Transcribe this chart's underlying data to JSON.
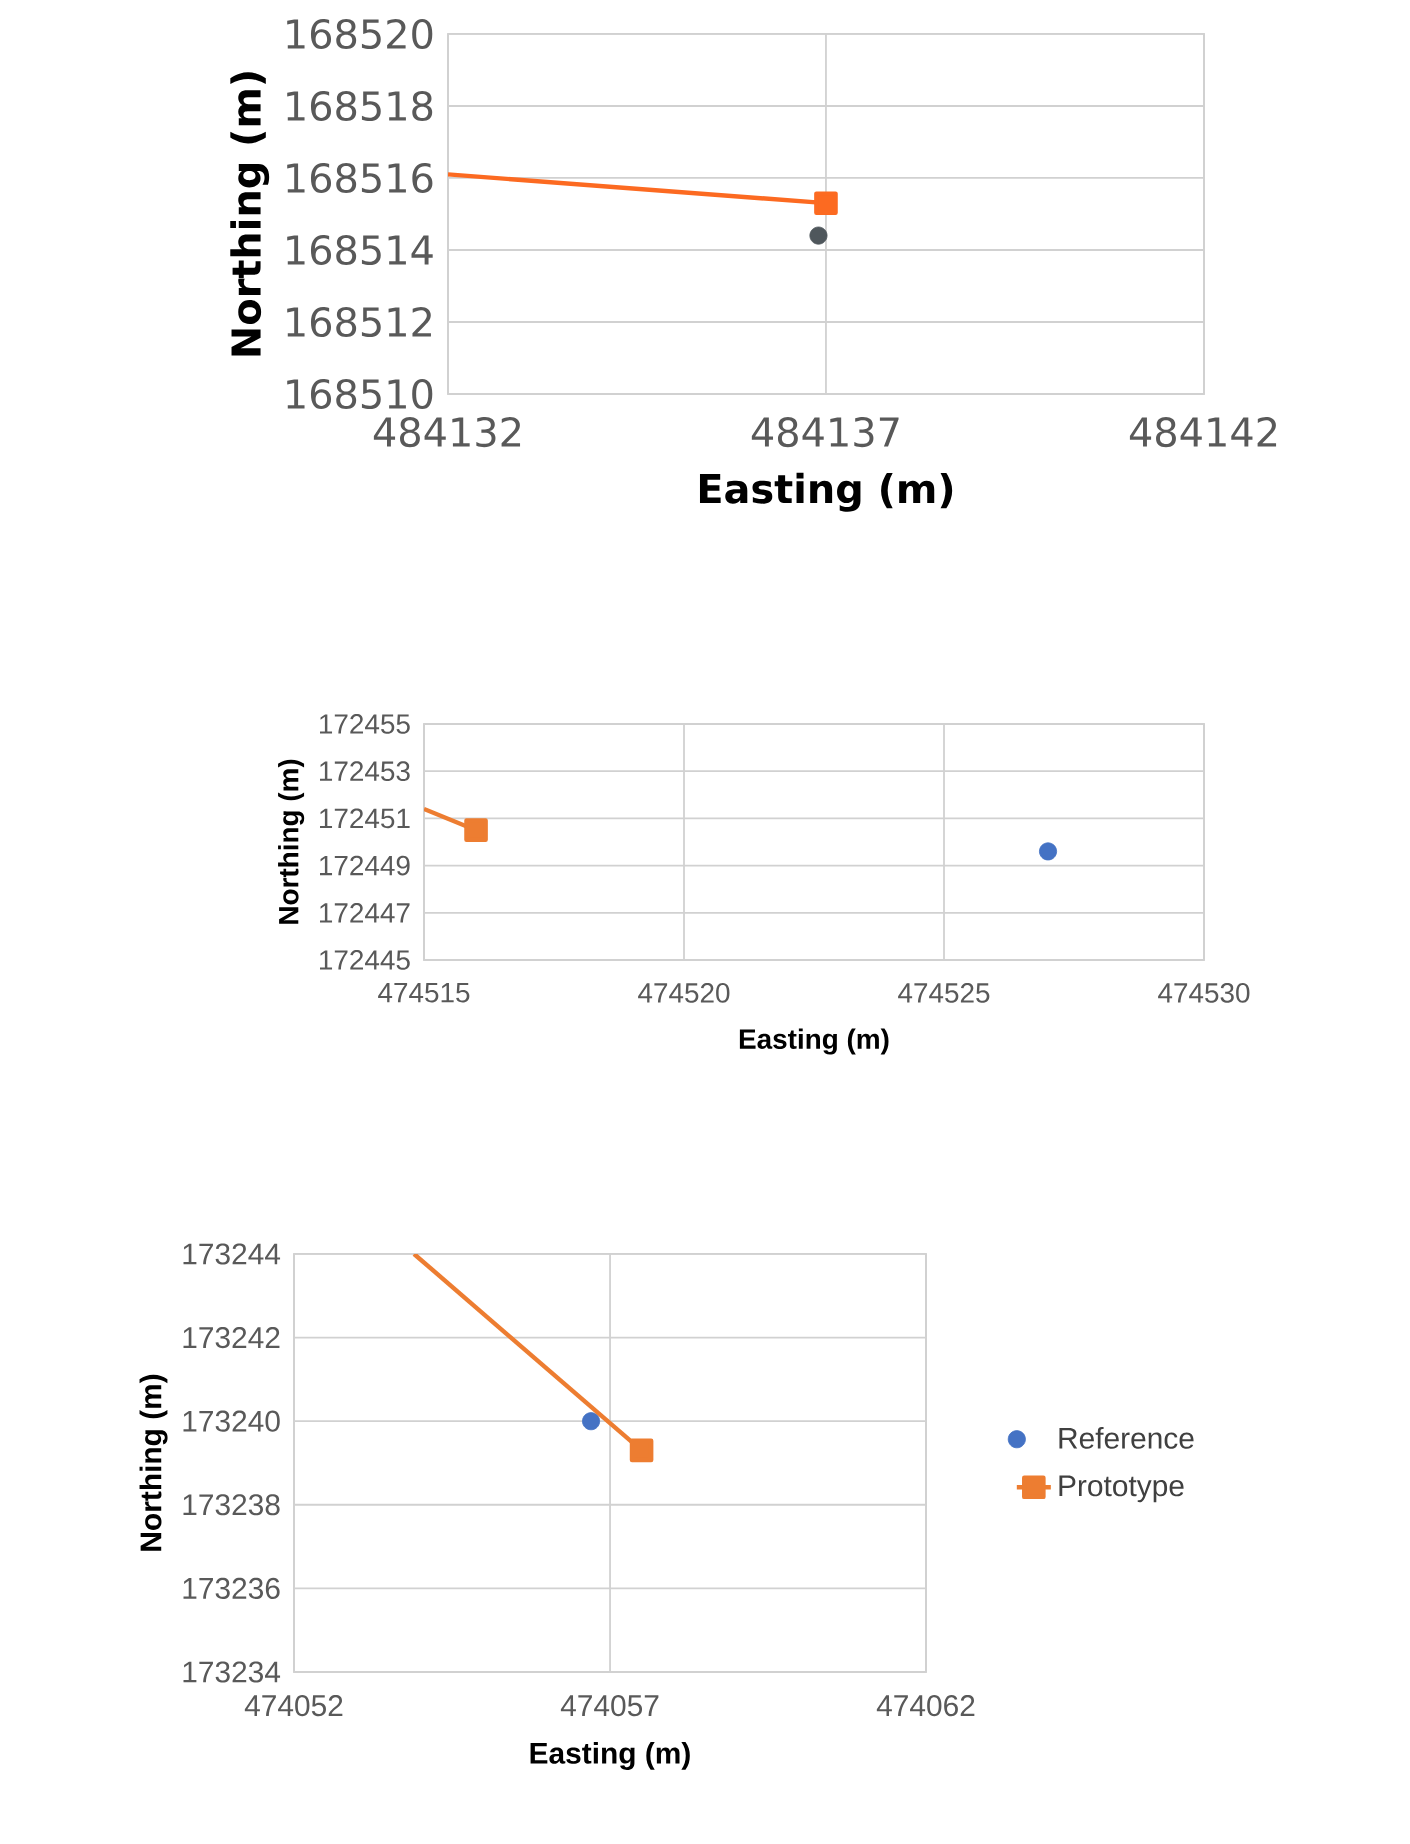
{
  "chart_data": [
    {
      "type": "scatter",
      "xlabel": "Easting (m)",
      "ylabel": "Northing (m)",
      "xlim": [
        484132,
        484142
      ],
      "xticks": [
        484132,
        484137,
        484142
      ],
      "ylim": [
        168510,
        168520
      ],
      "yticks": [
        168510,
        168512,
        168514,
        168516,
        168518,
        168520
      ],
      "grid": true,
      "legend": false,
      "series": [
        {
          "color": "#4f575c",
          "marker": "circle",
          "x": [
            484136.9
          ],
          "values": [
            168514.4
          ]
        },
        {
          "type": "line",
          "color": "#fc6a21",
          "marker": "square",
          "x": [
            484132,
            484137.0
          ],
          "values": [
            168516.1,
            168515.3
          ]
        }
      ]
    },
    {
      "type": "scatter",
      "xlabel": "Easting (m)",
      "ylabel": "Northing (m)",
      "xlim": [
        474515,
        474530
      ],
      "xticks": [
        474515,
        474520,
        474525,
        474530
      ],
      "ylim": [
        172445,
        172455
      ],
      "yticks": [
        172445,
        172447,
        172449,
        172451,
        172453,
        172455
      ],
      "grid": true,
      "legend": false,
      "series": [
        {
          "color": "#4472c4",
          "marker": "circle",
          "x": [
            474527.0
          ],
          "values": [
            172449.6
          ]
        },
        {
          "type": "line",
          "color": "#ed7d31",
          "marker": "square",
          "x": [
            474515,
            474516.0
          ],
          "values": [
            172451.4,
            172450.5
          ]
        }
      ]
    },
    {
      "type": "scatter",
      "xlabel": "Easting (m)",
      "ylabel": "Northing (m)",
      "xlim": [
        474052,
        474062
      ],
      "xticks": [
        474052,
        474057,
        474062
      ],
      "ylim": [
        173234,
        173244
      ],
      "yticks": [
        173234,
        173236,
        173238,
        173240,
        173242,
        173244
      ],
      "grid": true,
      "legend": "right",
      "series": [
        {
          "name": "Reference",
          "color": "#4472c4",
          "marker": "circle",
          "x": [
            474056.7
          ],
          "values": [
            173240.0
          ]
        },
        {
          "name": "Prototype",
          "type": "line",
          "color": "#ed7d31",
          "marker": "square",
          "x": [
            474053.9,
            474057.5
          ],
          "values": [
            173244,
            173239.3
          ]
        }
      ]
    }
  ]
}
